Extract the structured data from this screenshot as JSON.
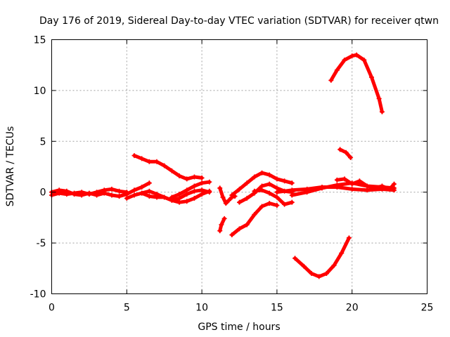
{
  "chart_data": {
    "type": "scatter",
    "title": "Day 176 of 2019, Sidereal Day-to-day VTEC variation (SDTVAR) for receiver qtwn",
    "xlabel": "GPS time / hours",
    "ylabel": "SDTVAR / TECUs",
    "xlim": [
      0,
      25
    ],
    "ylim": [
      -10,
      15
    ],
    "xticks": [
      0,
      5,
      10,
      15,
      20,
      25
    ],
    "yticks": [
      -10,
      -5,
      0,
      5,
      10,
      15
    ],
    "xtick_labels": [
      "0",
      "5",
      "10",
      "15",
      "20",
      "25"
    ],
    "ytick_labels": [
      "-10",
      "-5",
      "0",
      "5",
      "10",
      "15"
    ],
    "grid": true,
    "marker": "+",
    "color": "#ff0000",
    "series": [
      {
        "name": "band-0-a",
        "x": [
          0,
          0.5,
          1,
          1.5,
          2,
          2.5,
          3,
          3.5,
          4,
          4.5,
          5
        ],
        "y": [
          -0.3,
          -0.1,
          -0.2,
          -0.1,
          0.0,
          -0.2,
          0.0,
          0.2,
          0.3,
          0.1,
          0.0
        ]
      },
      {
        "name": "band-0-b",
        "x": [
          0,
          0.5,
          1,
          1.5,
          2,
          2.5,
          3,
          3.5,
          4,
          4.5,
          5
        ],
        "y": [
          0.0,
          0.2,
          0.1,
          -0.2,
          -0.3,
          -0.1,
          -0.3,
          -0.1,
          -0.3,
          -0.4,
          -0.2
        ]
      },
      {
        "name": "rise-5",
        "x": [
          4.5,
          5,
          5.5,
          6,
          6.5
        ],
        "y": [
          -0.4,
          -0.2,
          0.2,
          0.5,
          0.9
        ]
      },
      {
        "name": "mid-a",
        "x": [
          5,
          5.5,
          6,
          6.5,
          7,
          7.5,
          8,
          8.5,
          9,
          9.5,
          10,
          10.5
        ],
        "y": [
          -0.6,
          -0.3,
          -0.1,
          0.1,
          -0.2,
          -0.5,
          -0.8,
          -0.6,
          -0.2,
          0.1,
          0.2,
          0.0
        ]
      },
      {
        "name": "mid-b",
        "x": [
          6,
          6.5,
          7,
          7.5,
          8,
          8.5,
          9,
          9.5,
          10,
          10.5
        ],
        "y": [
          -0.1,
          -0.4,
          -0.5,
          -0.5,
          -0.8,
          -1.0,
          -0.9,
          -0.6,
          -0.2,
          0.1
        ]
      },
      {
        "name": "mid-c",
        "x": [
          8,
          8.5,
          9,
          9.5,
          10,
          10.5
        ],
        "y": [
          -0.5,
          -0.2,
          0.2,
          0.6,
          0.9,
          1.0
        ]
      },
      {
        "name": "arc-6-10",
        "x": [
          5.5,
          6,
          6.5,
          7,
          7.5,
          8,
          8.5,
          9,
          9.5,
          10
        ],
        "y": [
          3.6,
          3.3,
          3.0,
          3.0,
          2.6,
          2.1,
          1.6,
          1.3,
          1.5,
          1.4
        ]
      },
      {
        "name": "seg-11-a",
        "x": [
          11.2,
          11.4,
          11.6,
          11.8,
          12.0,
          12.2
        ],
        "y": [
          0.4,
          -0.5,
          -1.1,
          -0.8,
          -0.5,
          -0.4
        ]
      },
      {
        "name": "seg-11-b",
        "x": [
          11.2,
          11.3,
          11.5
        ],
        "y": [
          -3.8,
          -3.2,
          -2.6
        ]
      },
      {
        "name": "rise-12-15",
        "x": [
          12,
          12.5,
          13,
          13.5,
          14,
          14.5,
          15
        ],
        "y": [
          -4.2,
          -3.6,
          -3.2,
          -2.2,
          -1.4,
          -1.1,
          -1.3
        ]
      },
      {
        "name": "hump-12-16",
        "x": [
          12,
          12.5,
          13,
          13.5,
          14,
          14.5,
          15,
          15.5,
          16
        ],
        "y": [
          -0.3,
          0.3,
          0.9,
          1.5,
          1.9,
          1.7,
          1.3,
          1.1,
          0.9
        ]
      },
      {
        "name": "hump-13-16",
        "x": [
          12.5,
          13,
          13.5,
          14,
          14.5,
          15,
          15.5,
          16
        ],
        "y": [
          -1.0,
          -0.6,
          -0.1,
          0.6,
          0.8,
          0.4,
          0.1,
          0.0
        ]
      },
      {
        "name": "dip-13-16",
        "x": [
          13.5,
          14,
          14.5,
          15,
          15.5,
          16
        ],
        "y": [
          0.1,
          0.2,
          -0.1,
          -0.5,
          -1.2,
          -1.0
        ]
      },
      {
        "name": "band-16-23-a",
        "x": [
          15,
          16,
          17,
          18,
          19,
          20,
          21,
          22,
          22.8
        ],
        "y": [
          0.0,
          0.2,
          0.3,
          0.5,
          0.5,
          0.3,
          0.2,
          0.3,
          0.2
        ]
      },
      {
        "name": "band-16-23-b",
        "x": [
          16,
          17,
          18,
          19,
          20,
          21,
          22,
          22.8
        ],
        "y": [
          -0.3,
          0.0,
          0.4,
          0.7,
          0.9,
          0.6,
          0.5,
          0.4
        ]
      },
      {
        "name": "wiggle-19-23",
        "x": [
          19,
          19.5,
          20,
          20.5,
          21,
          21.5,
          22,
          22.5,
          22.8
        ],
        "y": [
          1.2,
          1.3,
          0.8,
          1.1,
          0.6,
          0.4,
          0.6,
          0.3,
          0.8
        ]
      },
      {
        "name": "arc-top",
        "x": [
          18.6,
          19,
          19.5,
          20,
          20.3,
          20.8,
          21.3,
          21.8,
          22
        ],
        "y": [
          11.0,
          12.0,
          13.0,
          13.4,
          13.5,
          13.0,
          11.3,
          9.2,
          7.9
        ]
      },
      {
        "name": "short-19",
        "x": [
          19.2,
          19.6,
          19.9
        ],
        "y": [
          4.2,
          3.9,
          3.4
        ]
      },
      {
        "name": "arc-bottom",
        "x": [
          16.2,
          16.8,
          17.3,
          17.8,
          18.3,
          18.8,
          19.3,
          19.8
        ],
        "y": [
          -6.5,
          -7.3,
          -8.0,
          -8.3,
          -8.0,
          -7.2,
          -6.0,
          -4.5
        ]
      }
    ]
  }
}
